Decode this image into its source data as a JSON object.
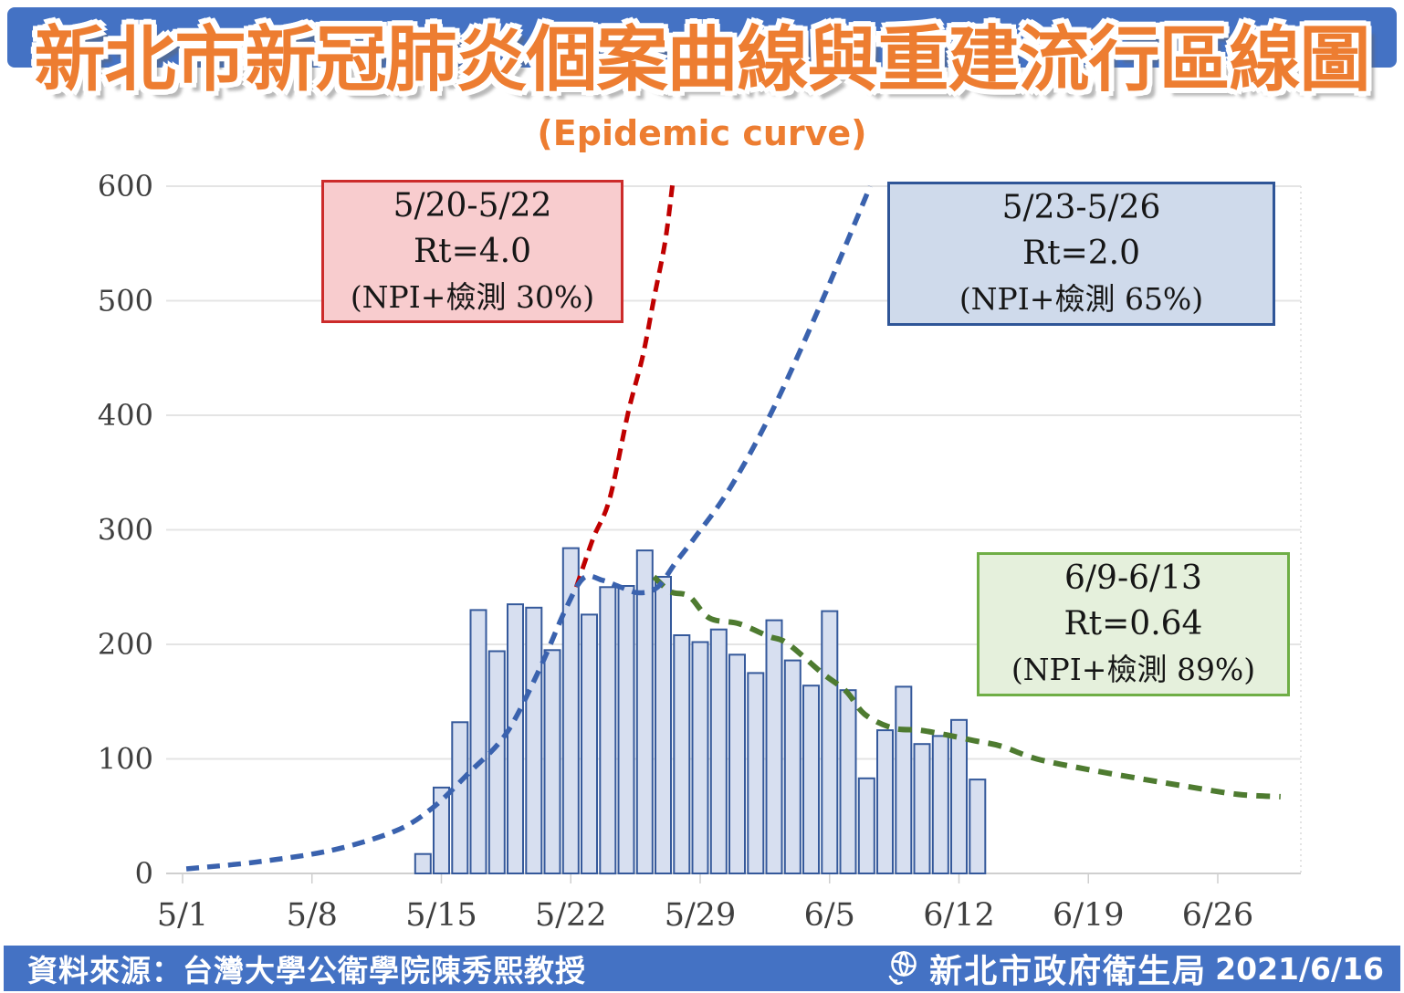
{
  "header": {
    "title": "新北市新冠肺炎個案曲線與重建流行區線圖",
    "subtitle": "(Epidemic curve)"
  },
  "annotations": {
    "red": {
      "line1": "5/20-5/22",
      "line2": "Rt=4.0",
      "line3": "(NPI+檢測 30%)"
    },
    "blue": {
      "line1": "5/23-5/26",
      "line2": "Rt=2.0",
      "line3": "(NPI+檢測 65%)"
    },
    "green": {
      "line1": "6/9-6/13",
      "line2": "Rt=0.64",
      "line3": "(NPI+檢測 89%)"
    }
  },
  "footer": {
    "source": "資料來源：台灣大學公衛學院陳秀熙教授",
    "agency": "新北市政府衛生局",
    "date": "2021/6/16",
    "logo_icon": "ntpc-emblem"
  },
  "colors": {
    "band": "#4472C4",
    "title": "#ED7D31",
    "bar_fill": "#D7DFF0",
    "bar_stroke": "#35599B",
    "line_blue": "#3A62AE",
    "line_red": "#C00000",
    "line_green": "#4E7B30",
    "grid": "#E4E4E4",
    "axis": "#CFCFCF",
    "tick_text": "#3F3F3F",
    "red_box_fill": "#F8CCCE",
    "red_box_border": "#CC2B2B",
    "blue_box_fill": "#CFDAEB",
    "blue_box_border": "#2F5597",
    "green_box_fill": "#E5F0DC",
    "green_box_border": "#6FAE46"
  },
  "chart_data": {
    "type": "combo-bar-line",
    "title": "新北市新冠肺炎個案曲線與重建流行區線圖",
    "subtitle": "(Epidemic curve)",
    "xlabel": "",
    "ylabel": "",
    "ylim": [
      0,
      600
    ],
    "yticks": [
      0,
      100,
      200,
      300,
      400,
      500,
      600
    ],
    "xtick_labels": [
      "5/1",
      "5/8",
      "5/15",
      "5/22",
      "5/29",
      "6/5",
      "6/12",
      "6/19",
      "6/26"
    ],
    "xtick_day_index": [
      0,
      7,
      14,
      21,
      28,
      35,
      42,
      49,
      56
    ],
    "grid": true,
    "legend": false,
    "bars": {
      "name": "daily-confirmed-cases",
      "first_day_index": 13,
      "dates": [
        "5/14",
        "5/15",
        "5/16",
        "5/17",
        "5/18",
        "5/19",
        "5/20",
        "5/21",
        "5/22",
        "5/23",
        "5/24",
        "5/25",
        "5/26",
        "5/27",
        "5/28",
        "5/29",
        "5/30",
        "5/31",
        "6/1",
        "6/2",
        "6/3",
        "6/4",
        "6/5",
        "6/6",
        "6/7",
        "6/8",
        "6/9",
        "6/10",
        "6/11",
        "6/12",
        "6/13"
      ],
      "values": [
        17,
        75,
        132,
        230,
        194,
        235,
        232,
        195,
        284,
        226,
        250,
        251,
        282,
        259,
        208,
        202,
        213,
        191,
        175,
        221,
        186,
        164,
        229,
        160,
        83,
        125,
        163,
        113,
        120,
        134,
        82
      ]
    },
    "lines": [
      {
        "name": "projection-Rt-4.0",
        "color": "#C00000",
        "width": 5,
        "dash": "13 8",
        "points": [
          [
            21.3,
            250
          ],
          [
            22.2,
            292
          ],
          [
            23.1,
            327
          ],
          [
            24.1,
            402
          ],
          [
            24.9,
            452
          ],
          [
            25.5,
            502
          ],
          [
            26.1,
            551
          ],
          [
            26.5,
            601
          ]
        ]
      },
      {
        "name": "reconstruction-Rt-0.64",
        "color": "#4E7B30",
        "width": 6,
        "dash": "15 10",
        "points": [
          [
            25.5,
            259
          ],
          [
            26.4,
            246
          ],
          [
            27.4,
            242
          ],
          [
            28.5,
            223
          ],
          [
            30.1,
            218
          ],
          [
            31.7,
            207
          ],
          [
            32.7,
            201
          ],
          [
            34.6,
            175
          ],
          [
            35.9,
            159
          ],
          [
            36.9,
            139
          ],
          [
            38.4,
            127
          ],
          [
            39.9,
            125
          ],
          [
            41.3,
            121
          ],
          [
            42.8,
            116
          ],
          [
            44.3,
            111
          ],
          [
            46.2,
            100
          ],
          [
            48.9,
            91
          ],
          [
            51.7,
            83
          ],
          [
            54.3,
            76
          ],
          [
            57.1,
            69
          ],
          [
            59.4,
            67
          ]
        ]
      },
      {
        "name": "reconstruction-Rt-2.0",
        "color": "#3A62AE",
        "width": 5.5,
        "dash": "14 9",
        "points": [
          [
            0.2,
            4
          ],
          [
            4,
            10
          ],
          [
            8,
            20
          ],
          [
            11.5,
            37
          ],
          [
            13.5,
            57
          ],
          [
            15.5,
            88
          ],
          [
            17.5,
            122
          ],
          [
            19.3,
            178
          ],
          [
            20.7,
            230
          ],
          [
            21.7,
            258
          ],
          [
            22.7,
            256
          ],
          [
            23.7,
            250
          ],
          [
            24.7,
            245
          ],
          [
            25.7,
            250
          ],
          [
            26.7,
            272
          ],
          [
            27.7,
            293
          ],
          [
            29.6,
            336
          ],
          [
            31.9,
            404
          ],
          [
            34.6,
            500
          ],
          [
            37.2,
            600
          ]
        ]
      }
    ]
  }
}
